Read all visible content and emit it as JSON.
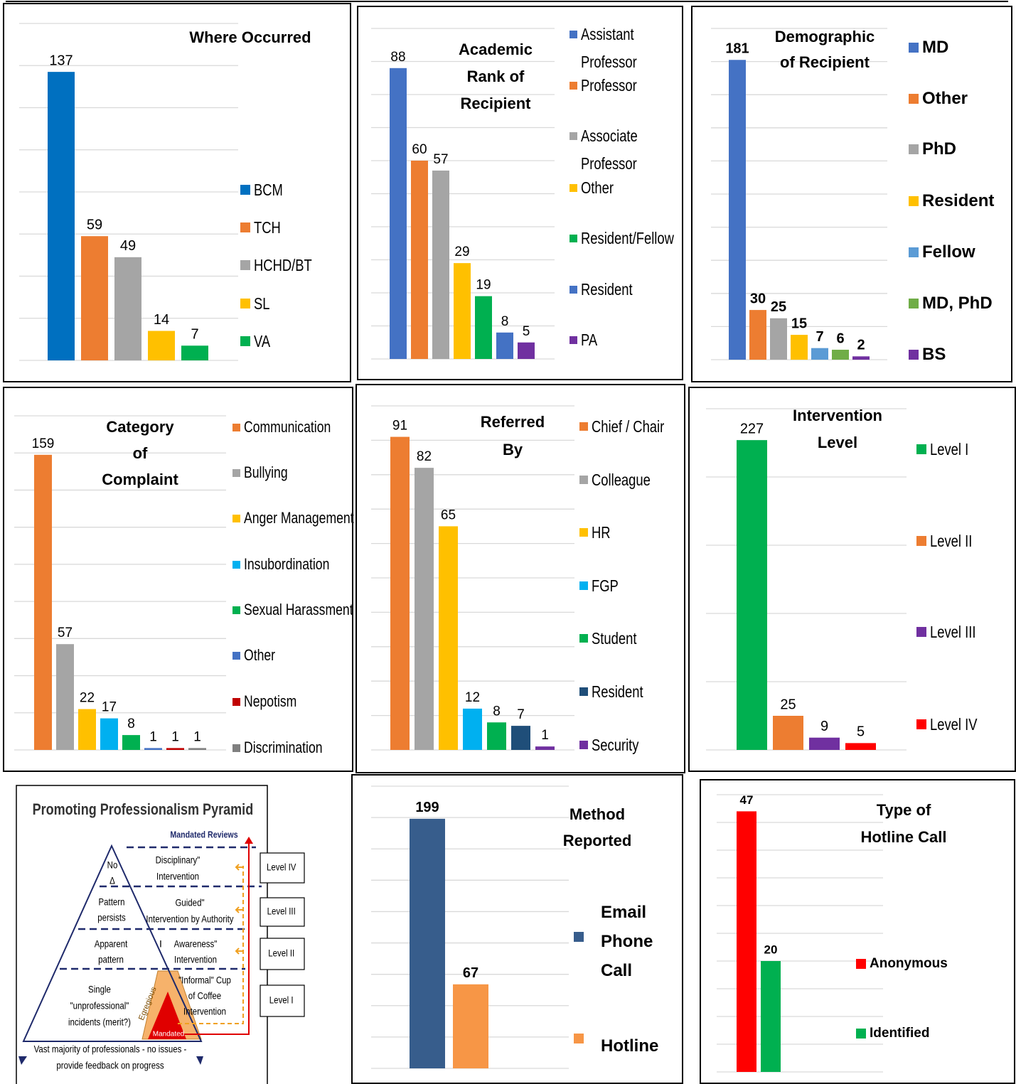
{
  "chart_data": [
    {
      "type": "bar",
      "title": "Where Occurred",
      "categories": [
        "BCM",
        "TCH",
        "HCHD/BT",
        "SL",
        "VA"
      ],
      "values": [
        137,
        59,
        49,
        14,
        7
      ],
      "colors": [
        "#0070c0",
        "#ed7d31",
        "#a5a5a5",
        "#ffc000",
        "#00b050"
      ],
      "ylim": [
        0,
        160
      ],
      "yticks": [
        0,
        20,
        40,
        60,
        80,
        100,
        120,
        140,
        160
      ],
      "grid": true
    },
    {
      "type": "bar",
      "title": "Academic Rank of Recipient",
      "categories": [
        "Assistant Professor",
        "Professor",
        "Associate Professor",
        "Other",
        "Resident/Fellow",
        "Resident",
        "PA"
      ],
      "values": [
        88,
        60,
        57,
        29,
        19,
        8,
        5
      ],
      "colors": [
        "#4472c4",
        "#ed7d31",
        "#a5a5a5",
        "#ffc000",
        "#00b050",
        "#4472c4",
        "#7030a0"
      ],
      "ylim": [
        0,
        100
      ],
      "yticks": [
        0,
        10,
        20,
        30,
        40,
        50,
        60,
        70,
        80,
        90,
        100
      ],
      "grid": true
    },
    {
      "type": "bar",
      "title": "Demographic of Recipient",
      "categories": [
        "MD",
        "Other",
        "PhD",
        "Resident",
        "Fellow",
        "MD, PhD",
        "BS"
      ],
      "values": [
        181,
        30,
        25,
        15,
        7,
        6,
        2
      ],
      "colors": [
        "#4472c4",
        "#ed7d31",
        "#a5a5a5",
        "#ffc000",
        "#5b9bd5",
        "#70ad47",
        "#7030a0"
      ],
      "ylim": [
        0,
        200
      ],
      "yticks": [
        0,
        20,
        40,
        60,
        80,
        100,
        120,
        140,
        160,
        180,
        200
      ],
      "grid": true
    },
    {
      "type": "bar",
      "title": "Category of Complaint",
      "categories": [
        "Communication",
        "Bullying",
        "Anger Management",
        "Insubordination",
        "Sexual Harassment",
        "Other",
        "Nepotism",
        "Discrimination"
      ],
      "values": [
        159,
        57,
        22,
        17,
        8,
        1,
        1,
        1
      ],
      "colors": [
        "#ed7d31",
        "#a5a5a5",
        "#ffc000",
        "#00b0f0",
        "#00b050",
        "#4472c4",
        "#c00000",
        "#808080"
      ],
      "ylim": [
        0,
        180
      ],
      "yticks": [
        0,
        20,
        40,
        60,
        80,
        100,
        120,
        140,
        160,
        180
      ],
      "grid": true
    },
    {
      "type": "bar",
      "title": "Referred By",
      "categories": [
        "Chief / Chair",
        "Colleague",
        "HR",
        "FGP",
        "Student",
        "Resident",
        "Security"
      ],
      "values": [
        91,
        82,
        65,
        12,
        8,
        7,
        1
      ],
      "colors": [
        "#ed7d31",
        "#a5a5a5",
        "#ffc000",
        "#00b0f0",
        "#00b050",
        "#1f4e79",
        "#7030a0"
      ],
      "ylim": [
        0,
        100
      ],
      "yticks": [
        0,
        10,
        20,
        30,
        40,
        50,
        60,
        70,
        80,
        90,
        100
      ],
      "grid": true
    },
    {
      "type": "bar",
      "title": "Intervention Level",
      "categories": [
        "Level I",
        "Level II",
        "Level III",
        "Level IV"
      ],
      "values": [
        227,
        25,
        9,
        5
      ],
      "colors": [
        "#00b050",
        "#ed7d31",
        "#7030a0",
        "#ff0000"
      ],
      "ylim": [
        0,
        250
      ],
      "yticks": [
        0,
        50,
        100,
        150,
        200,
        250
      ],
      "grid": true
    },
    {
      "type": "bar",
      "title": "Method Reported",
      "categories": [
        "Email Phone Call",
        "Hotline"
      ],
      "values": [
        199,
        67
      ],
      "colors": [
        "#375d8c",
        "#f79646"
      ],
      "ylim": [
        0,
        225
      ],
      "yticks": [
        0,
        25,
        50,
        75,
        100,
        125,
        150,
        175,
        200,
        225
      ],
      "grid": true
    },
    {
      "type": "bar",
      "title": "Type of Hotline Call",
      "categories": [
        "Anonymous",
        "Identified"
      ],
      "values": [
        47,
        20
      ],
      "colors": [
        "#ff0000",
        "#00b050"
      ],
      "ylim": [
        0,
        50
      ],
      "yticks": [
        0,
        5,
        10,
        15,
        20,
        25,
        30,
        35,
        40,
        45,
        50
      ],
      "grid": true
    }
  ],
  "pyramid": {
    "title": "Promoting Professionalism Pyramid",
    "header": "Mandated Reviews",
    "tiers": [
      {
        "left": [
          "No",
          "Δ"
        ],
        "right": [
          "Disciplinary\"",
          "Intervention"
        ]
      },
      {
        "left": [
          "Pattern",
          "persists"
        ],
        "right": [
          "Guided\"",
          "Intervention by Authority"
        ]
      },
      {
        "left": [
          "Apparent",
          "pattern"
        ],
        "middle": "I",
        "right": [
          "Awareness\"",
          "Intervention"
        ]
      },
      {
        "left": [
          "Single",
          "\"unprofessional\"",
          "incidents (merit?)"
        ],
        "right": [
          "\"Informal\" Cup",
          "of Coffee",
          "Intervention"
        ]
      }
    ],
    "egregious": "Egregious",
    "mandated": "Mandated",
    "levels": [
      "Level IV",
      "Level III",
      "Level II",
      "Level I"
    ],
    "footer": [
      "Vast majority of professionals - no issues -",
      "provide feedback on progress"
    ]
  }
}
